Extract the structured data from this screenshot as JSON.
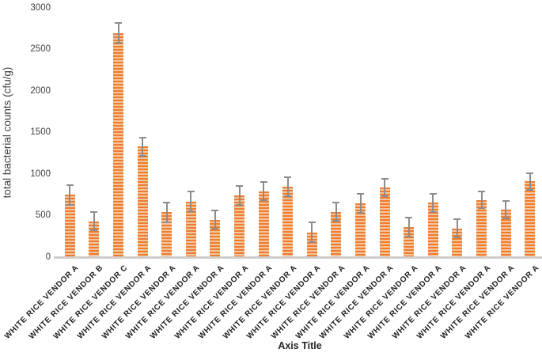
{
  "chart_data": {
    "type": "bar",
    "title": "",
    "ylabel": "total bacterial counts (cfu/g)",
    "xlabel": "Axis Title",
    "ylim": [
      0,
      3000
    ],
    "yticks": [
      0,
      500,
      1000,
      1500,
      2000,
      2500,
      3000
    ],
    "grid": false,
    "legend_position": "none",
    "bar_stripe_dark_color": "#ED7D31",
    "bar_stripe_light_color": "#F8C49C",
    "error_bar_color": "#8C8C8C",
    "axis_line_color": "#CFCDCD",
    "categories": [
      "WHITE RICE VENDOR A",
      "WHITE RICE VENDOR B",
      "WHITE RICE VENDOR C",
      "WHITE RICE VENDOR A",
      "WHITE RICE VENDOR A",
      "WHITE RICE VENDOR A",
      "WHITE RICE VENDOR A",
      "WHITE RICE VENDOR A",
      "WHITE RICE VENDOR A",
      "WHITE RICE VENDOR A",
      "WHITE RICE VENDOR A",
      "WHITE RICE VENDOR A",
      "WHITE RICE VENDOR A",
      "WHITE RICE VENDOR A",
      "WHITE RICE VENDOR A",
      "WHITE RICE VENDOR A",
      "WHITE RICE VENDOR A",
      "WHITE RICE VENDOR A",
      "WHITE RICE VENDOR A",
      "WHITE RICE VENDOR A"
    ],
    "values": [
      750,
      430,
      2700,
      1330,
      540,
      670,
      450,
      745,
      795,
      850,
      300,
      545,
      650,
      835,
      365,
      655,
      345,
      690,
      575,
      910
    ],
    "errors": [
      120,
      110,
      115,
      110,
      118,
      120,
      110,
      115,
      113,
      112,
      115,
      110,
      115,
      105,
      115,
      108,
      108,
      100,
      105,
      100
    ]
  }
}
